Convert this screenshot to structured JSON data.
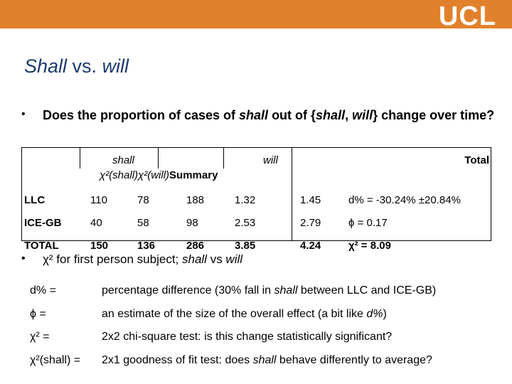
{
  "header": {
    "logo": "UCL"
  },
  "title": [
    "Shall",
    " vs. ",
    "will"
  ],
  "bullet1": [
    "Does the proportion of cases of ",
    "shall",
    " out of {",
    "shall",
    ", ",
    "will",
    "} change over time?"
  ],
  "table": {
    "header": {
      "shall": "shall",
      "will": "will",
      "total": "Total",
      "chi_shall": "χ²(shall)",
      "chi_will": "χ²(will)",
      "summary": "Summary"
    },
    "rows": [
      [
        "LLC",
        "110",
        "78",
        "188",
        "1.32",
        "1.45",
        "d% = -30.24% ±20.84%"
      ],
      [
        "ICE-GB",
        "40",
        "58",
        "98",
        "2.53",
        "2.79",
        "ϕ = 0.17"
      ],
      [
        "TOTAL",
        "150",
        "136",
        "286",
        "3.85",
        "4.24",
        "χ² = 8.09"
      ]
    ]
  },
  "bullet2": [
    "χ² for first person subject; ",
    "shall",
    " vs ",
    "will"
  ],
  "definitions": [
    {
      "term": "d% =",
      "desc": [
        "percentage difference (30% fall in ",
        "shall",
        " between LLC and ICE-GB)"
      ]
    },
    {
      "term": "ϕ =",
      "desc": [
        "an estimate of the size of the overall effect (a bit like ",
        "d%",
        ")"
      ]
    },
    {
      "term": "χ² =",
      "desc": [
        "2x2 chi-square test: is this change statistically significant?"
      ]
    },
    {
      "term": "χ²(shall) =",
      "desc": [
        "2x1 goodness of fit test: does ",
        "shall",
        " behave differently to average?"
      ]
    }
  ]
}
